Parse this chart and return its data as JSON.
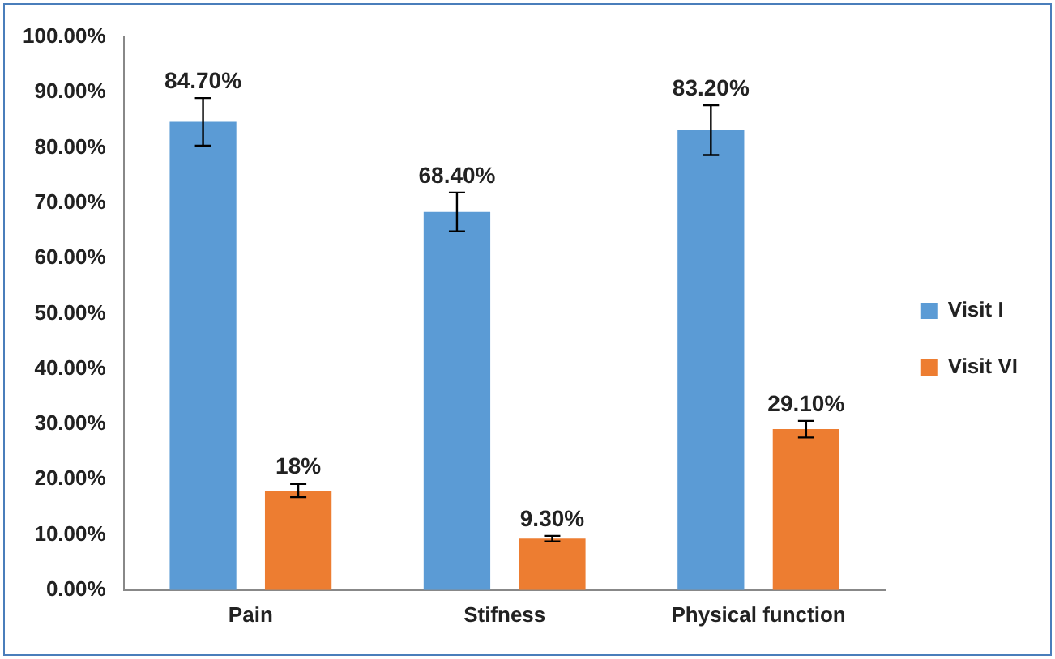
{
  "chart_data": {
    "type": "bar",
    "categories": [
      "Pain",
      "Stifness",
      "Physical function"
    ],
    "series": [
      {
        "name": "Visit I",
        "color": "#5b9bd5",
        "values": [
          84.7,
          68.4,
          83.2
        ],
        "errors": [
          4.3,
          3.5,
          4.5
        ],
        "value_labels": [
          "84.70%",
          "68.40%",
          "83.20%"
        ]
      },
      {
        "name": "Visit VI",
        "color": "#ed7d31",
        "values": [
          18,
          9.3,
          29.1
        ],
        "errors": [
          1.2,
          0.5,
          1.5
        ],
        "value_labels": [
          "18%",
          "9.30%",
          "29.10%"
        ]
      }
    ],
    "ylim": [
      0,
      100
    ],
    "yticks": [
      {
        "value": 0,
        "label": "0.00%"
      },
      {
        "value": 10,
        "label": "10.00%"
      },
      {
        "value": 20,
        "label": "20.00%"
      },
      {
        "value": 30,
        "label": "30.00%"
      },
      {
        "value": 40,
        "label": "40.00%"
      },
      {
        "value": 50,
        "label": "50.00%"
      },
      {
        "value": 60,
        "label": "60.00%"
      },
      {
        "value": 70,
        "label": "70.00%"
      },
      {
        "value": 80,
        "label": "80.00%"
      },
      {
        "value": 90,
        "label": "90.00%"
      },
      {
        "value": 100,
        "label": "100.00%"
      }
    ],
    "grid": false,
    "legend": "right"
  }
}
